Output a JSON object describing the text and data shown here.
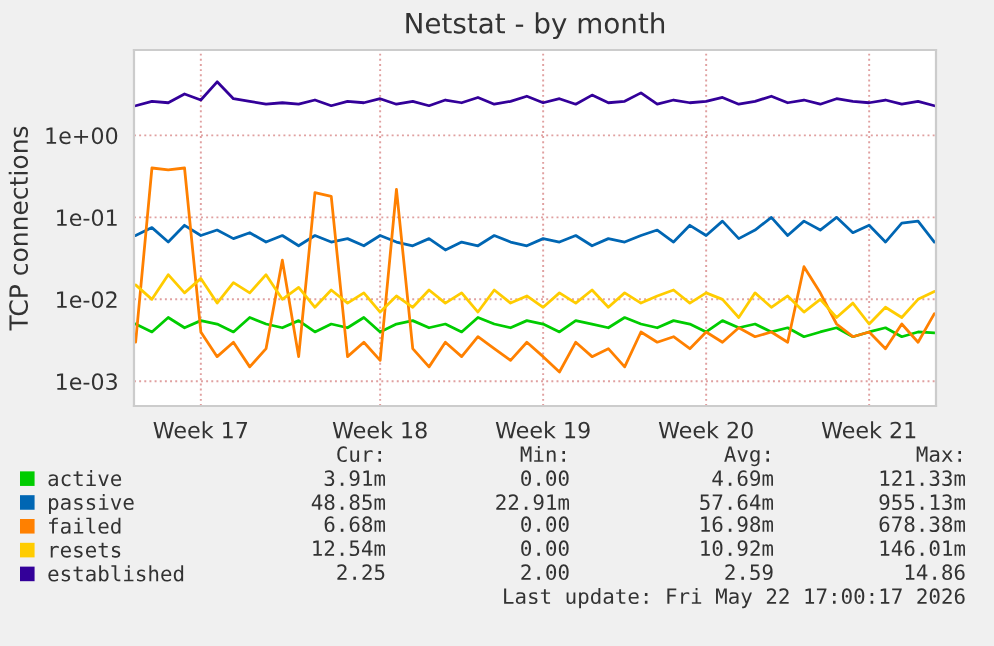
{
  "chart_data": {
    "type": "line",
    "title": "Netstat - by month",
    "ylabel": "TCP connections",
    "categories": [
      null,
      null,
      null,
      null,
      "Week 17",
      null,
      null,
      null,
      null,
      null,
      null,
      null,
      null,
      null,
      null,
      "Week 18",
      null,
      null,
      null,
      null,
      null,
      null,
      null,
      null,
      null,
      "Week 19",
      null,
      null,
      null,
      null,
      null,
      null,
      null,
      null,
      null,
      "Week 20",
      null,
      null,
      null,
      null,
      null,
      null,
      null,
      null,
      null,
      "Week 21",
      null,
      null,
      null,
      null
    ],
    "series": [
      {
        "name": "active",
        "color": "#00cc00",
        "values": [
          0.005,
          0.004,
          0.006,
          0.0045,
          0.0055,
          0.005,
          0.004,
          0.006,
          0.005,
          0.0045,
          0.0055,
          0.004,
          0.005,
          0.0045,
          0.006,
          0.004,
          0.005,
          0.0055,
          0.0045,
          0.005,
          0.004,
          0.006,
          0.005,
          0.0045,
          0.0055,
          0.005,
          0.004,
          0.0055,
          0.005,
          0.0045,
          0.006,
          0.005,
          0.0045,
          0.0055,
          0.005,
          0.004,
          0.0055,
          0.0045,
          0.005,
          0.004,
          0.0045,
          0.0035,
          0.004,
          0.0045,
          0.0035,
          0.004,
          0.0045,
          0.0035,
          0.004,
          0.0039
        ]
      },
      {
        "name": "passive",
        "color": "#0066b3",
        "values": [
          0.06,
          0.075,
          0.05,
          0.08,
          0.06,
          0.07,
          0.055,
          0.065,
          0.05,
          0.06,
          0.045,
          0.06,
          0.05,
          0.055,
          0.045,
          0.06,
          0.05,
          0.045,
          0.055,
          0.04,
          0.05,
          0.045,
          0.06,
          0.05,
          0.045,
          0.055,
          0.05,
          0.06,
          0.045,
          0.055,
          0.05,
          0.06,
          0.07,
          0.05,
          0.08,
          0.06,
          0.09,
          0.055,
          0.07,
          0.1,
          0.06,
          0.09,
          0.07,
          0.1,
          0.065,
          0.08,
          0.05,
          0.085,
          0.09,
          0.05
        ]
      },
      {
        "name": "failed",
        "color": "#ff8000",
        "values": [
          0.003,
          0.4,
          0.38,
          0.4,
          0.004,
          0.002,
          0.003,
          0.0015,
          0.0025,
          0.03,
          0.002,
          0.2,
          0.18,
          0.002,
          0.003,
          0.0018,
          0.22,
          0.0025,
          0.0015,
          0.003,
          0.002,
          0.0035,
          0.0025,
          0.0018,
          0.003,
          0.002,
          0.0013,
          0.003,
          0.002,
          0.0025,
          0.0015,
          0.004,
          0.003,
          0.0035,
          0.0025,
          0.004,
          0.003,
          0.0045,
          0.0035,
          0.004,
          0.003,
          0.025,
          0.012,
          0.005,
          0.0035,
          0.004,
          0.0025,
          0.005,
          0.003,
          0.0067
        ]
      },
      {
        "name": "resets",
        "color": "#ffcc00",
        "values": [
          0.015,
          0.01,
          0.02,
          0.012,
          0.018,
          0.009,
          0.016,
          0.012,
          0.02,
          0.01,
          0.014,
          0.008,
          0.013,
          0.009,
          0.012,
          0.007,
          0.011,
          0.008,
          0.013,
          0.009,
          0.012,
          0.007,
          0.013,
          0.009,
          0.011,
          0.008,
          0.012,
          0.009,
          0.013,
          0.008,
          0.012,
          0.009,
          0.011,
          0.013,
          0.009,
          0.012,
          0.01,
          0.006,
          0.012,
          0.008,
          0.011,
          0.007,
          0.01,
          0.006,
          0.009,
          0.005,
          0.008,
          0.006,
          0.01,
          0.0125
        ]
      },
      {
        "name": "established",
        "color": "#330099",
        "values": [
          2.3,
          2.6,
          2.5,
          3.2,
          2.7,
          4.5,
          2.8,
          2.6,
          2.4,
          2.5,
          2.4,
          2.7,
          2.3,
          2.6,
          2.5,
          2.8,
          2.4,
          2.6,
          2.3,
          2.7,
          2.5,
          2.9,
          2.4,
          2.6,
          3.0,
          2.5,
          2.8,
          2.4,
          3.1,
          2.5,
          2.6,
          3.3,
          2.4,
          2.7,
          2.5,
          2.6,
          2.9,
          2.4,
          2.6,
          3.0,
          2.5,
          2.7,
          2.4,
          2.8,
          2.6,
          2.5,
          2.7,
          2.4,
          2.6,
          2.3
        ]
      }
    ],
    "log": "y",
    "ylim": [
      0.0005,
      11
    ],
    "yticks": [
      {
        "value": 0.001,
        "label": "1e-03"
      },
      {
        "value": 0.01,
        "label": "1e-02"
      },
      {
        "value": 0.1,
        "label": "1e-01"
      },
      {
        "value": 1,
        "label": "1e+00"
      }
    ],
    "grid": true,
    "legend": "bottom",
    "marker": "none",
    "line_style": "solid",
    "annotations": [
      "Cur:",
      "Min:",
      "Avg:",
      "Max:",
      "3.91m",
      "0.00",
      "4.69m",
      "121.33m",
      "48.85m",
      "22.91m",
      "57.64m",
      "955.13m",
      "6.68m",
      "0.00",
      "16.98m",
      "678.38m",
      "12.54m",
      "0.00",
      "10.92m",
      "146.01m",
      "2.25",
      "2.00",
      "2.59",
      "14.86",
      "Last update: Fri May 22 17:00:17 2026"
    ]
  }
}
